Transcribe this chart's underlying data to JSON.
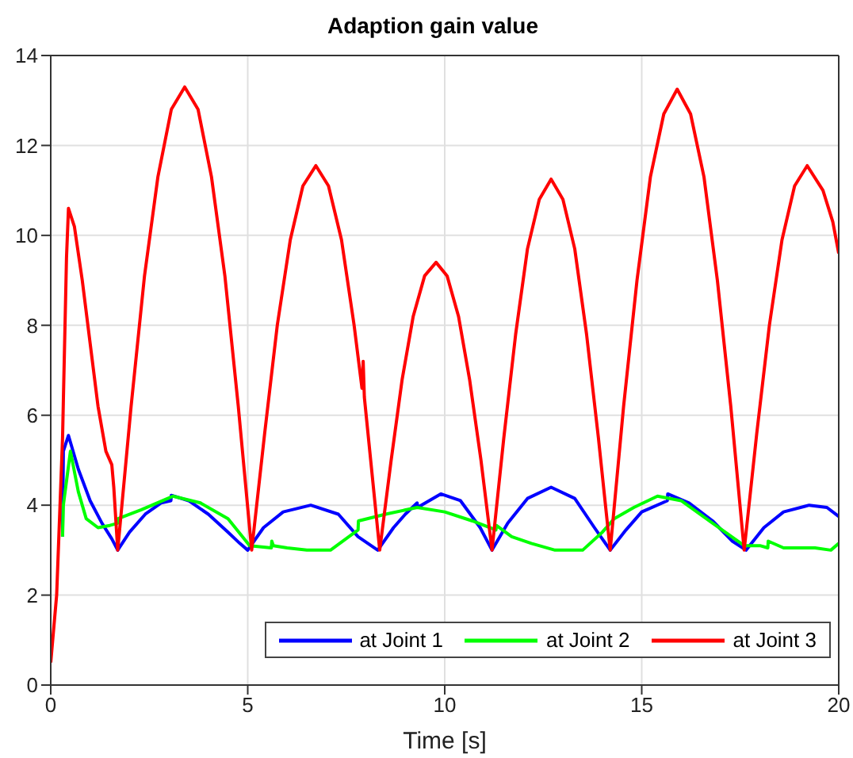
{
  "chart_data": {
    "type": "line",
    "title": "Adaption gain value",
    "xlabel": "Time [s]",
    "xlim": [
      0,
      20
    ],
    "xticks": [
      0,
      5,
      10,
      15,
      20
    ],
    "ylim": [
      0,
      14
    ],
    "yticks": [
      0,
      2,
      4,
      6,
      8,
      10,
      12,
      14
    ],
    "grid": true,
    "legend": "bottom right",
    "line_style": "solid",
    "marker": "none",
    "series": [
      {
        "name": "at Joint 1",
        "color": "#0000ff",
        "x": [
          0.3,
          0.32,
          0.45,
          0.7,
          1.0,
          1.3,
          1.55,
          1.7,
          2.0,
          2.4,
          2.8,
          3.05,
          3.06,
          3.5,
          4.0,
          4.5,
          4.8,
          5.0,
          5.4,
          5.9,
          6.6,
          7.3,
          7.8,
          8.3,
          8.7,
          9.0,
          9.3,
          9.31,
          9.9,
          10.4,
          10.9,
          11.2,
          11.6,
          12.1,
          12.7,
          13.3,
          13.8,
          14.2,
          14.6,
          15.0,
          15.65,
          15.66,
          16.2,
          16.8,
          17.3,
          17.65,
          18.1,
          18.6,
          19.25,
          19.7,
          20
        ],
        "values": [
          3.3,
          5.2,
          5.55,
          4.8,
          4.1,
          3.6,
          3.25,
          3.0,
          3.4,
          3.8,
          4.05,
          4.1,
          4.22,
          4.1,
          3.8,
          3.4,
          3.15,
          3.0,
          3.5,
          3.85,
          4.0,
          3.8,
          3.3,
          3.0,
          3.5,
          3.8,
          4.05,
          3.95,
          4.25,
          4.1,
          3.5,
          3.0,
          3.6,
          4.15,
          4.4,
          4.15,
          3.5,
          3.0,
          3.45,
          3.85,
          4.1,
          4.25,
          4.05,
          3.65,
          3.2,
          3.0,
          3.5,
          3.85,
          4.0,
          3.95,
          3.75
        ]
      },
      {
        "name": "at Joint 2",
        "color": "#00ff00",
        "x": [
          0.3,
          0.32,
          0.5,
          0.7,
          0.9,
          1.2,
          1.5,
          1.7,
          1.71,
          2.3,
          3.1,
          3.8,
          4.5,
          5.05,
          5.6,
          5.61,
          5.65,
          6.0,
          6.5,
          7.1,
          7.8,
          7.81,
          8.5,
          9.3,
          10.0,
          10.7,
          11.3,
          11.31,
          11.7,
          12.2,
          12.8,
          13.5,
          14.0,
          14.3,
          14.8,
          15.4,
          16.0,
          16.8,
          17.6,
          18.0,
          18.2,
          18.21,
          18.6,
          19.4,
          19.8,
          20
        ],
        "values": [
          3.3,
          4.0,
          5.2,
          4.3,
          3.7,
          3.5,
          3.55,
          3.6,
          3.7,
          3.9,
          4.2,
          4.05,
          3.7,
          3.1,
          3.05,
          3.2,
          3.1,
          3.05,
          3.0,
          3.0,
          3.45,
          3.65,
          3.8,
          3.95,
          3.85,
          3.65,
          3.45,
          3.55,
          3.3,
          3.15,
          3.0,
          3.0,
          3.4,
          3.7,
          3.95,
          4.2,
          4.1,
          3.6,
          3.1,
          3.1,
          3.05,
          3.2,
          3.05,
          3.05,
          3.0,
          3.15
        ]
      },
      {
        "name": "at Joint 3",
        "color": "#ff0000",
        "x": [
          0,
          0.15,
          0.3,
          0.4,
          0.45,
          0.6,
          0.8,
          1.0,
          1.2,
          1.4,
          1.55,
          1.6,
          1.7,
          2.04,
          2.38,
          2.72,
          3.06,
          3.4,
          3.74,
          4.08,
          4.42,
          4.76,
          5.1,
          5.43,
          5.75,
          6.08,
          6.4,
          6.73,
          7.05,
          7.38,
          7.7,
          7.9,
          7.93,
          7.96,
          8.35,
          8.64,
          8.92,
          9.2,
          9.49,
          9.78,
          10.06,
          10.35,
          10.63,
          10.92,
          11.2,
          11.5,
          11.8,
          12.1,
          12.4,
          12.7,
          13.0,
          13.3,
          13.6,
          13.9,
          14.2,
          14.54,
          14.88,
          15.22,
          15.56,
          15.9,
          16.24,
          16.58,
          16.92,
          17.26,
          17.6,
          17.92,
          18.24,
          18.56,
          18.88,
          19.2,
          19.6,
          19.85,
          20
        ],
        "values": [
          0.5,
          2.0,
          5.5,
          9.5,
          10.6,
          10.2,
          9.0,
          7.6,
          6.2,
          5.2,
          4.9,
          4.4,
          3.0,
          6.2,
          9.1,
          11.3,
          12.8,
          13.3,
          12.8,
          11.3,
          9.1,
          6.2,
          3.0,
          5.6,
          8.0,
          9.9,
          11.1,
          11.55,
          11.1,
          9.9,
          8.0,
          6.6,
          7.2,
          6.4,
          3.0,
          5.0,
          6.8,
          8.2,
          9.1,
          9.4,
          9.1,
          8.2,
          6.8,
          5.0,
          3.0,
          5.5,
          7.8,
          9.7,
          10.8,
          11.25,
          10.8,
          9.7,
          7.8,
          5.5,
          3.0,
          6.2,
          9.0,
          11.3,
          12.7,
          13.25,
          12.7,
          11.3,
          9.0,
          6.2,
          3.0,
          5.6,
          8.0,
          9.9,
          11.1,
          11.55,
          11.0,
          10.3,
          9.6
        ]
      }
    ]
  }
}
